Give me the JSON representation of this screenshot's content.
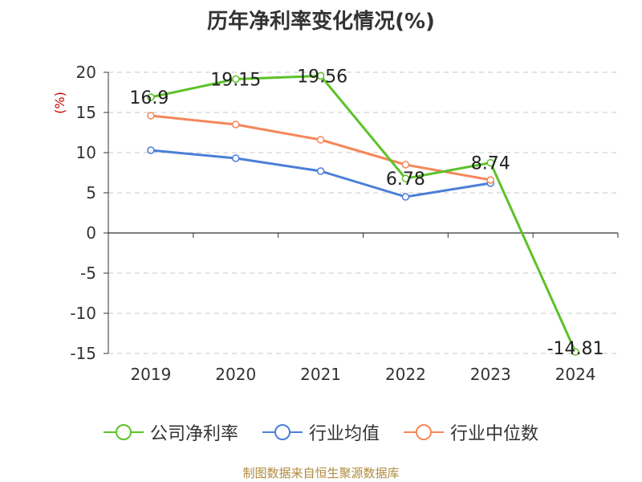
{
  "title": "历年净利率变化情况(%)",
  "source": "制图数据来自恒生聚源数据库",
  "colors": {
    "company": "#5cc228",
    "avg": "#4a7fd8",
    "median": "#f5875a",
    "axis": "#333333",
    "grid": "#c8c8c8",
    "ylabel": "#cc0000"
  },
  "chart_data": {
    "type": "line",
    "title": "历年净利率变化情况(%)",
    "ylabel": "(%)",
    "xlabel": "",
    "ylim": [
      -15,
      20
    ],
    "yticks": [
      20,
      15,
      10,
      5,
      0,
      -5,
      -10,
      -15
    ],
    "grid": true,
    "legend_position": "bottom",
    "categories": [
      "2019",
      "2020",
      "2021",
      "2022",
      "2023",
      "2024"
    ],
    "series": [
      {
        "name": "公司净利率",
        "key": "company",
        "values": [
          16.9,
          19.15,
          19.56,
          6.78,
          8.74,
          -14.81
        ],
        "labels": [
          "16.9",
          "19.15",
          "19.56",
          "6.78",
          "8.74",
          "-14.81"
        ]
      },
      {
        "name": "行业均值",
        "key": "avg",
        "values": [
          10.3,
          9.3,
          7.7,
          4.5,
          6.2,
          null
        ]
      },
      {
        "name": "行业中位数",
        "key": "median",
        "values": [
          14.6,
          13.5,
          11.6,
          8.5,
          6.6,
          null
        ]
      }
    ]
  }
}
